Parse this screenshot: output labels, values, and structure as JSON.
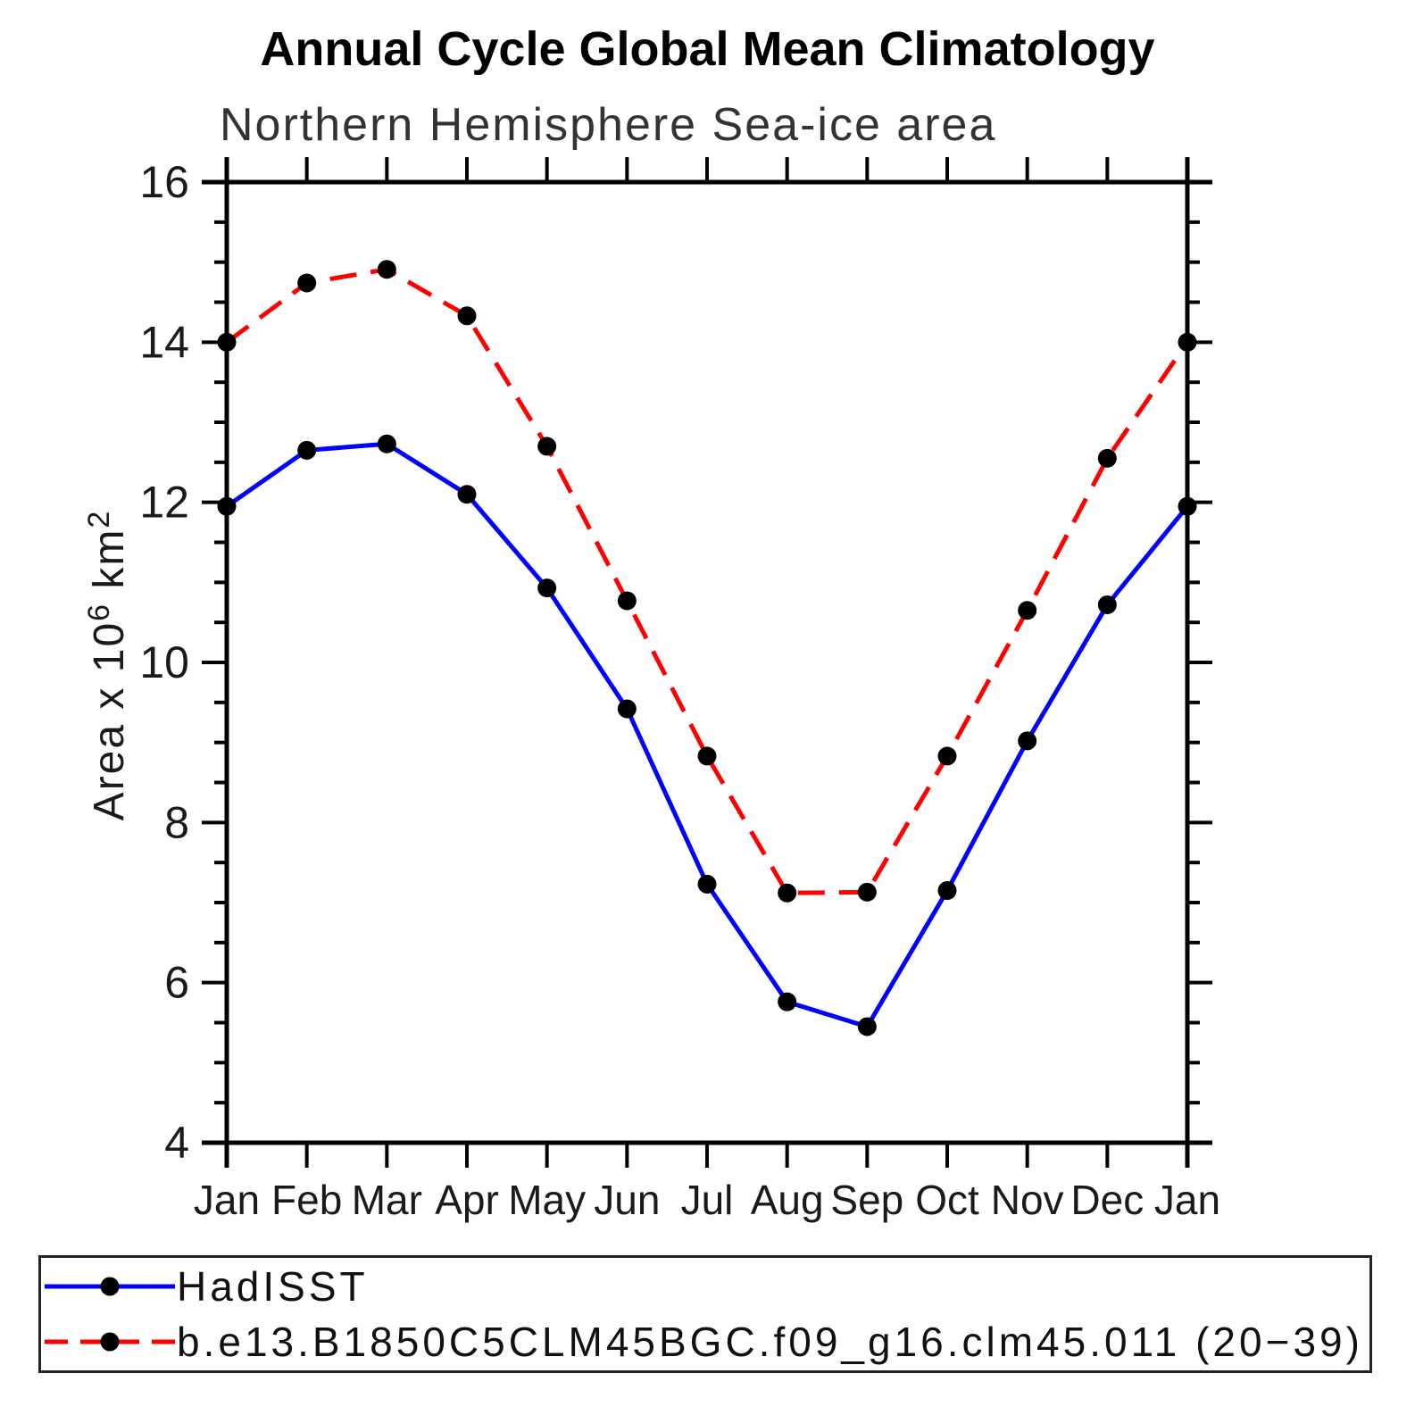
{
  "title": "Annual Cycle Global Mean Climatology",
  "subtitle": "Northern Hemisphere Sea-ice area",
  "axes": {
    "y_tick_labels": [
      "16",
      "14",
      "12",
      "10",
      "8",
      "6",
      "4"
    ],
    "x_tick_labels": [
      "Jan",
      "Feb",
      "Mar",
      "Apr",
      "May",
      "Jun",
      "Jul",
      "Aug",
      "Sep",
      "Oct",
      "Nov",
      "Dec",
      "Jan"
    ],
    "ylabel": "Area x 10⁶ km²",
    "ylabel_parts": {
      "base": "Area x 10",
      "exp": "6",
      "unit": " km",
      "unit_exp": "2"
    }
  },
  "chart_data": {
    "type": "line",
    "title": "Annual Cycle Global Mean Climatology",
    "subtitle": "Northern Hemisphere Sea-ice area",
    "xlabel": "",
    "ylabel": "Area x 10^6 km^2",
    "ylim": [
      4,
      16
    ],
    "y_major_step": 2,
    "y_minor_step": 0.5,
    "grid": false,
    "legend_position": "bottom-box",
    "categories": [
      "Jan",
      "Feb",
      "Mar",
      "Apr",
      "May",
      "Jun",
      "Jul",
      "Aug",
      "Sep",
      "Oct",
      "Nov",
      "Dec",
      "Jan"
    ],
    "series": [
      {
        "name": "HadISST",
        "color": "#0000ff",
        "line_style": "solid",
        "marker": "filled-black-circle",
        "values": [
          11.95,
          12.65,
          12.73,
          12.1,
          10.93,
          9.42,
          7.23,
          5.76,
          5.45,
          7.15,
          9.02,
          10.72,
          11.95
        ]
      },
      {
        "name": "b.e13.B1850C5CLM45BGC.f09_g16.clm45.011 (20−39)",
        "color": "#ff0000",
        "line_style": "dashed",
        "marker": "filled-black-circle",
        "values": [
          14.0,
          14.74,
          14.91,
          14.33,
          12.7,
          10.77,
          8.83,
          7.12,
          7.13,
          8.83,
          10.65,
          12.55,
          14.0
        ]
      }
    ]
  }
}
